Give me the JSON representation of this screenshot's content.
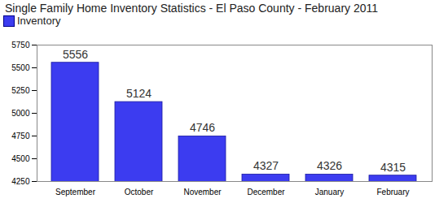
{
  "chart_data": {
    "type": "bar",
    "title": "Single Family Home Inventory Statistics - El Paso County - February 2011",
    "categories": [
      "September",
      "October",
      "November",
      "December",
      "January",
      "February"
    ],
    "series": [
      {
        "name": "Inventory",
        "color": "#3c3cf0",
        "values": [
          5556,
          5124,
          4746,
          4327,
          4326,
          4315
        ]
      }
    ],
    "ylim": [
      4250,
      5750
    ],
    "yticks": [
      4250,
      4500,
      4750,
      5000,
      5250,
      5500,
      5750
    ],
    "grid": false,
    "legend": "top-left",
    "data_labels": true
  }
}
